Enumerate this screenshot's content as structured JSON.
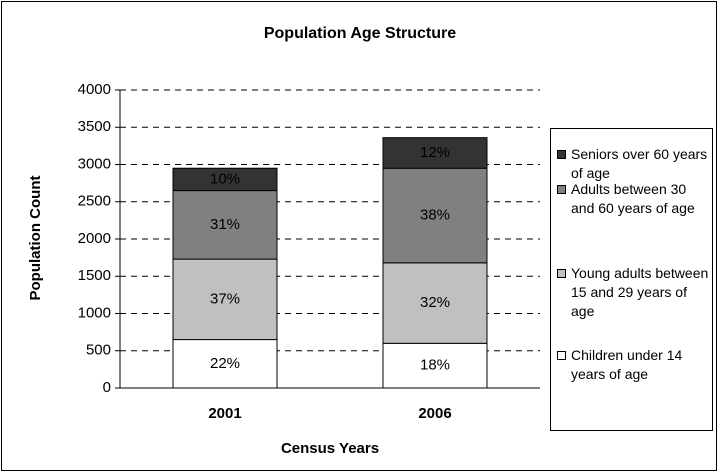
{
  "chart_data": {
    "type": "stacked_bar",
    "title": "Population Age Structure",
    "x_label": "Census Years",
    "y_label": "Population Count",
    "categories": [
      "2001",
      "2006"
    ],
    "series": [
      {
        "name": "Children under 14 years of age",
        "color": "#ffffff",
        "values": [
          650,
          600
        ],
        "value_labels": [
          "22%",
          "18%"
        ]
      },
      {
        "name": "Young adults between 15 and 29 years of age",
        "color": "#c0c0c0",
        "values": [
          1080,
          1080
        ],
        "value_labels": [
          "37%",
          "32%"
        ]
      },
      {
        "name": "Adults between 30 and 60 years of age",
        "color": "#808080",
        "values": [
          920,
          1270
        ],
        "value_labels": [
          "31%",
          "38%"
        ]
      },
      {
        "name": "Seniors over 60 years of age",
        "color": "#333333",
        "values": [
          300,
          410
        ],
        "value_labels": [
          "10%",
          "12%"
        ]
      }
    ],
    "ylim": [
      0,
      4000
    ],
    "yticks": [
      0,
      500,
      1000,
      1500,
      2000,
      2500,
      3000,
      3500,
      4000
    ],
    "grid": true
  }
}
